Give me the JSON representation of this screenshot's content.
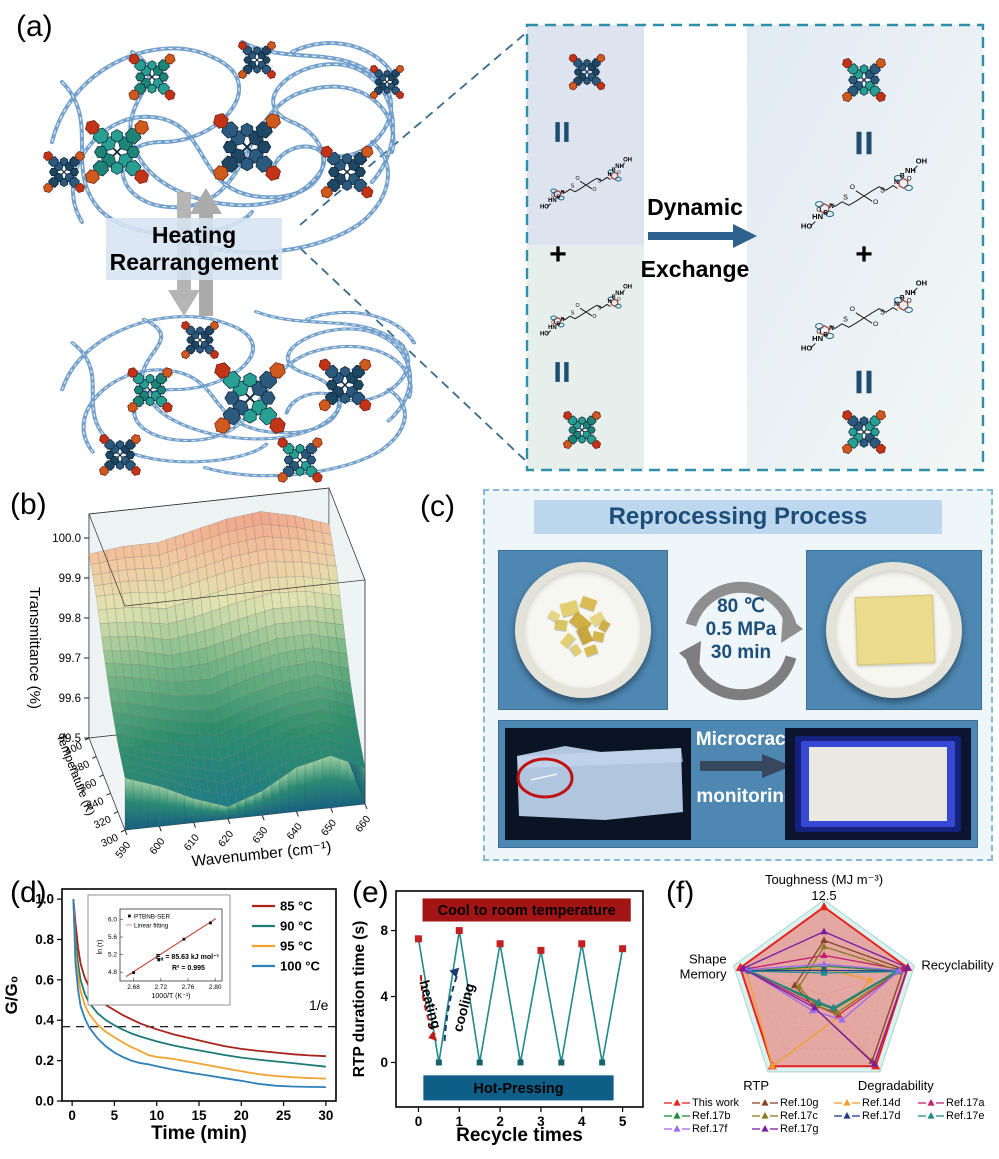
{
  "panel_labels": {
    "a": "(a)",
    "b": "(b)",
    "c": "(c)",
    "d": "(d)",
    "e": "(e)",
    "f": "(f)"
  },
  "panel_a": {
    "heating_line1": "Heating",
    "heating_line2": "Rearrangement",
    "dynamic": "Dynamic",
    "exchange": "Exchange",
    "plus": "+",
    "atoms": {
      "oh": "OH",
      "ho": "HO",
      "nh": "NH",
      "hn": "HN",
      "s": "S",
      "o": "O",
      "b": "B",
      "n": "N"
    }
  },
  "panel_c": {
    "title": "Reprocessing Process",
    "conditions": [
      "80 ℃",
      "0.5 MPa",
      "30 min"
    ],
    "microcrack_line1": "Microcrack",
    "microcrack_line2": "monitoring"
  },
  "colors": {
    "accent_blue": "#1d4e79",
    "box_dash": "#2f8fa8",
    "panel_c_bg": "#4d87b2",
    "network_rope": "#6d9cc9",
    "cluster_navy": "#2b5a7e",
    "cluster_navy_dark": "#1e4764",
    "cluster_teal": "#27a093",
    "cluster_teal_dark": "#1d8577",
    "cluster_red": "#c23318",
    "cluster_orange": "#cf5a1e"
  },
  "chart_data": [
    {
      "id": "b",
      "type": "heatmap",
      "xlabel": "Wavenumber (cm⁻¹)",
      "ylabel": "Temperature (K)",
      "zlabel": "Transmittance (%)",
      "x_ticks": [
        590,
        600,
        610,
        620,
        630,
        640,
        650,
        660
      ],
      "y_ticks": [
        300,
        320,
        340,
        360,
        380,
        400
      ],
      "z_ticks": [
        99.5,
        99.6,
        99.7,
        99.8,
        99.9,
        100.0
      ],
      "zlim": [
        99.5,
        100.05
      ],
      "grid_z": [
        [
          99.63,
          99.6,
          99.56,
          99.53,
          99.56,
          99.61,
          99.63,
          99.59
        ],
        [
          99.67,
          99.64,
          99.62,
          99.6,
          99.63,
          99.66,
          99.67,
          99.64
        ],
        [
          99.73,
          99.71,
          99.69,
          99.68,
          99.71,
          99.73,
          99.74,
          99.71
        ],
        [
          99.81,
          99.8,
          99.78,
          99.79,
          99.81,
          99.83,
          99.83,
          99.81
        ],
        [
          99.9,
          99.9,
          99.89,
          99.91,
          99.93,
          99.94,
          99.93,
          99.91
        ],
        [
          99.96,
          99.97,
          99.97,
          99.99,
          100.01,
          100.02,
          100.0,
          99.97
        ]
      ]
    },
    {
      "id": "d",
      "type": "line",
      "xlabel": "Time (min)",
      "ylabel": "G/G₀",
      "x_ticks": [
        0,
        5,
        10,
        15,
        20,
        25,
        30
      ],
      "y_ticks": [
        0.0,
        0.2,
        0.4,
        0.6,
        0.8,
        1.0
      ],
      "dashed_line_y": 0.368,
      "dashed_line_label": "1/e",
      "series": [
        {
          "name": "85 °C",
          "color": "#a8231a",
          "points": [
            [
              0.15,
              1.0
            ],
            [
              0.4,
              0.88
            ],
            [
              0.7,
              0.76
            ],
            [
              1,
              0.68
            ],
            [
              1.5,
              0.61
            ],
            [
              2,
              0.565
            ],
            [
              3,
              0.51
            ],
            [
              4,
              0.475
            ],
            [
              5,
              0.45
            ],
            [
              6,
              0.425
            ],
            [
              7,
              0.405
            ],
            [
              8,
              0.385
            ],
            [
              9,
              0.37
            ],
            [
              10,
              0.355
            ],
            [
              12,
              0.33
            ],
            [
              14,
              0.31
            ],
            [
              16,
              0.29
            ],
            [
              18,
              0.272
            ],
            [
              20,
              0.258
            ],
            [
              22,
              0.248
            ],
            [
              24,
              0.24
            ],
            [
              26,
              0.232
            ],
            [
              28,
              0.226
            ],
            [
              30,
              0.222
            ]
          ]
        },
        {
          "name": "90 °C",
          "color": "#1e7a78",
          "points": [
            [
              0.15,
              1.0
            ],
            [
              0.4,
              0.8
            ],
            [
              0.7,
              0.68
            ],
            [
              1,
              0.6
            ],
            [
              1.5,
              0.53
            ],
            [
              2,
              0.487
            ],
            [
              3,
              0.435
            ],
            [
              4,
              0.4
            ],
            [
              5,
              0.375
            ],
            [
              6,
              0.353
            ],
            [
              7,
              0.335
            ],
            [
              8,
              0.32
            ],
            [
              10,
              0.295
            ],
            [
              12,
              0.275
            ],
            [
              14,
              0.258
            ],
            [
              16,
              0.243
            ],
            [
              18,
              0.228
            ],
            [
              20,
              0.215
            ],
            [
              22,
              0.205
            ],
            [
              24,
              0.196
            ],
            [
              26,
              0.188
            ],
            [
              28,
              0.179
            ],
            [
              30,
              0.17
            ]
          ]
        },
        {
          "name": "95 °C",
          "color": "#f0a330",
          "points": [
            [
              0.15,
              1.0
            ],
            [
              0.4,
              0.74
            ],
            [
              0.7,
              0.62
            ],
            [
              1,
              0.545
            ],
            [
              1.5,
              0.475
            ],
            [
              2,
              0.432
            ],
            [
              3,
              0.378
            ],
            [
              4,
              0.342
            ],
            [
              5,
              0.315
            ],
            [
              6,
              0.29
            ],
            [
              7,
              0.268
            ],
            [
              8,
              0.248
            ],
            [
              9,
              0.228
            ],
            [
              10,
              0.218
            ],
            [
              11,
              0.214
            ],
            [
              12,
              0.208
            ],
            [
              14,
              0.193
            ],
            [
              16,
              0.178
            ],
            [
              18,
              0.162
            ],
            [
              20,
              0.147
            ],
            [
              22,
              0.133
            ],
            [
              24,
              0.124
            ],
            [
              26,
              0.118
            ],
            [
              28,
              0.114
            ],
            [
              30,
              0.111
            ]
          ]
        },
        {
          "name": "100 °C",
          "color": "#2f7fb8",
          "points": [
            [
              0.15,
              1.0
            ],
            [
              0.4,
              0.68
            ],
            [
              0.7,
              0.55
            ],
            [
              1,
              0.47
            ],
            [
              1.5,
              0.41
            ],
            [
              2,
              0.365
            ],
            [
              3,
              0.31
            ],
            [
              4,
              0.27
            ],
            [
              5,
              0.24
            ],
            [
              6,
              0.218
            ],
            [
              7,
              0.2
            ],
            [
              8,
              0.188
            ],
            [
              9,
              0.182
            ],
            [
              10,
              0.172
            ],
            [
              12,
              0.155
            ],
            [
              14,
              0.14
            ],
            [
              16,
              0.127
            ],
            [
              18,
              0.113
            ],
            [
              20,
              0.1
            ],
            [
              22,
              0.085
            ],
            [
              24,
              0.076
            ],
            [
              26,
              0.072
            ],
            [
              28,
              0.07
            ],
            [
              30,
              0.069
            ]
          ]
        }
      ]
    },
    {
      "id": "d_inset",
      "type": "scatter",
      "sample_label": "PTBNB-SER",
      "fit_label": "Linear fitting",
      "ea_prefix": "E",
      "ea_sub": "a",
      "ea_value": " = 85.63 kJ mol⁻¹",
      "r2_text": "R² = 0.995",
      "xlabel": "1000/T (K⁻¹)",
      "ylabel": "ln (τ)",
      "x_ticks": [
        2.68,
        2.72,
        2.76,
        2.8
      ],
      "y_ticks": [
        4.8,
        5.2,
        5.6,
        6.0
      ],
      "points": [
        [
          2.68,
          4.79
        ],
        [
          2.717,
          5.08
        ],
        [
          2.754,
          5.55
        ],
        [
          2.793,
          5.92
        ]
      ],
      "fit_line": [
        [
          2.669,
          4.7
        ],
        [
          2.801,
          6.02
        ]
      ]
    },
    {
      "id": "e",
      "type": "line",
      "xlabel": "Recycle times",
      "ylabel": "RTP duration time (s)",
      "x_ticks": [
        0,
        1,
        2,
        3,
        4,
        5
      ],
      "y_ticks": [
        0,
        4,
        8
      ],
      "top_banner": "Cool to room temperature",
      "top_banner_color": "#a31515",
      "bottom_banner": "Hot-Pressing",
      "bottom_banner_color": "#0f5e87",
      "heating_label": "heating",
      "cooling_label": "cooling",
      "line_color": "#1f8a8a",
      "high_marker_color": "#c42020",
      "low_marker_color": "#15636b",
      "high_points": {
        "x": [
          0,
          1,
          2,
          3,
          4,
          5
        ],
        "y": [
          7.5,
          8.0,
          7.2,
          6.8,
          7.2,
          6.9
        ]
      },
      "low_points": {
        "x": [
          0.5,
          1.5,
          2.5,
          3.5,
          4.5
        ],
        "y": [
          0,
          0,
          0,
          0,
          0
        ]
      }
    },
    {
      "id": "f",
      "type": "radar",
      "axes": [
        "Toughness (MJ m⁻³)",
        "Recyclability",
        "Degradability",
        "RTP",
        "Shape Memory"
      ],
      "max_label": "12.5",
      "background_color": "#d9f2f0",
      "series": [
        {
          "name": "This work",
          "color": "#e8211d",
          "fill": "rgba(233,108,96,0.55)",
          "values": [
            1,
            1,
            1,
            1,
            1
          ]
        },
        {
          "name": "Ref.10g",
          "color": "#8a4326",
          "values": [
            0.62,
            0.95,
            0.93,
            0.18,
            0.35
          ]
        },
        {
          "name": "Ref.14d",
          "color": "#f59e2c",
          "values": [
            0.3,
            0.55,
            0.3,
            1.0,
            0.93
          ]
        },
        {
          "name": "Ref.17a",
          "color": "#c21f6e",
          "values": [
            0.45,
            0.93,
            0.28,
            0.15,
            0.95
          ]
        },
        {
          "name": "Ref.17b",
          "color": "#1e8a3c",
          "values": [
            0.33,
            0.88,
            0.2,
            0.12,
            0.88
          ]
        },
        {
          "name": "Ref.17c",
          "color": "#8a7a20",
          "values": [
            0.55,
            0.9,
            0.25,
            0.15,
            0.3
          ]
        },
        {
          "name": "Ref.17d",
          "color": "#1e3c8c",
          "values": [
            0.28,
            0.88,
            0.18,
            0.1,
            0.9
          ]
        },
        {
          "name": "Ref.17e",
          "color": "#1f8c8c",
          "values": [
            0.25,
            0.86,
            0.18,
            0.1,
            0.88
          ]
        },
        {
          "name": "Ref.17f",
          "color": "#a06af0",
          "values": [
            0.35,
            0.9,
            0.35,
            0.22,
            0.93
          ]
        },
        {
          "name": "Ref.17g",
          "color": "#7a1fa5",
          "values": [
            0.72,
            1.0,
            0.97,
            0.18,
            0.97
          ]
        }
      ]
    }
  ]
}
